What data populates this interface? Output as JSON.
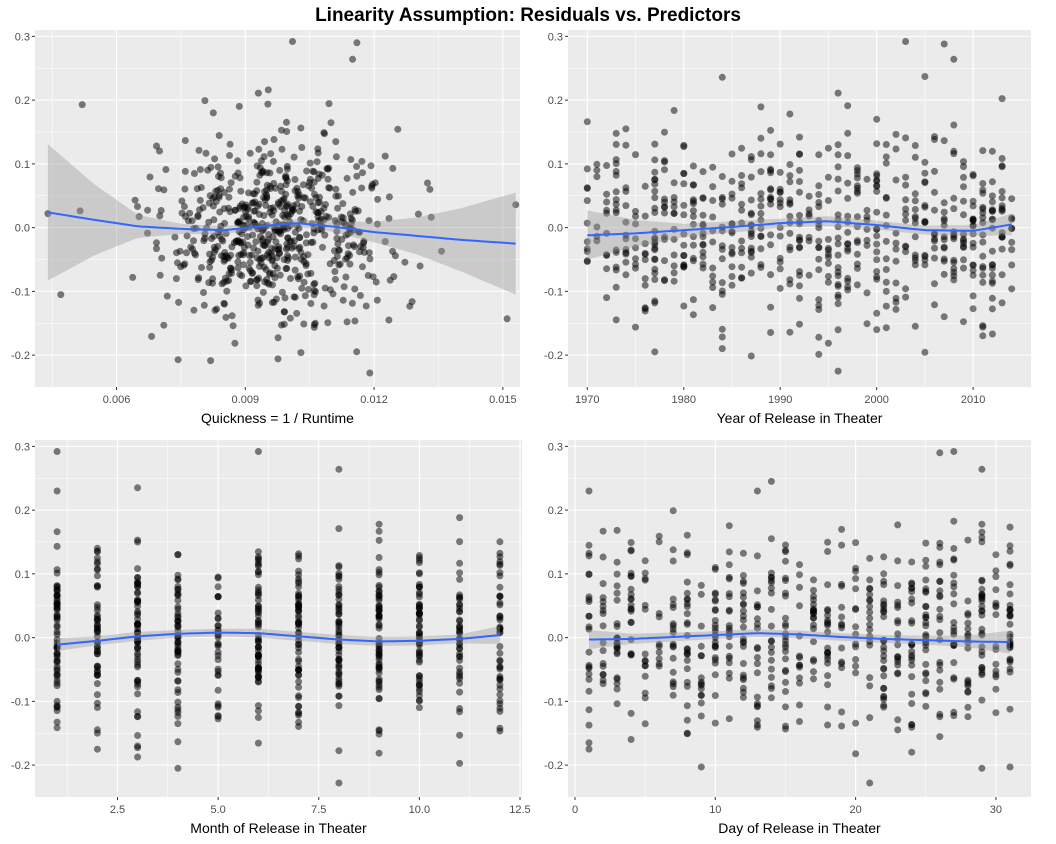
{
  "figure": {
    "title": "Linearity Assumption: Residuals vs. Predictors"
  },
  "chart_data": [
    {
      "type": "scatter",
      "id": "p1",
      "xlabel": "Quickness = 1 / Runtime",
      "ylabel": "",
      "xlim": [
        0.0041,
        0.0154
      ],
      "ylim": [
        -0.25,
        0.31
      ],
      "xticks": [
        0.006,
        0.009,
        0.012,
        0.015
      ],
      "xticklabels": [
        "0.006",
        "0.009",
        "0.012",
        "0.015"
      ],
      "yticks": [
        -0.2,
        -0.1,
        0.0,
        0.1,
        0.2,
        0.3
      ],
      "yticklabels": [
        "-0.2",
        "-0.1",
        "0.0",
        "0.1",
        "0.2",
        "0.3"
      ],
      "grid": true,
      "points": {
        "x_center": 0.0097,
        "x_sd": 0.0013,
        "y_sd": 0.072,
        "n": 650,
        "extra": [
          [
            0.0047,
            -0.105
          ],
          [
            0.0052,
            0.193
          ],
          [
            0.0044,
            0.022
          ],
          [
            0.0151,
            -0.143
          ],
          [
            0.0153,
            0.036
          ],
          [
            0.0101,
            0.292
          ],
          [
            0.0116,
            0.29
          ],
          [
            0.0115,
            0.264
          ],
          [
            0.0119,
            -0.228
          ],
          [
            0.0133,
            0.06
          ],
          [
            0.0071,
            -0.153
          ]
        ]
      },
      "smooth": {
        "x": [
          0.0044,
          0.0055,
          0.0065,
          0.0075,
          0.0085,
          0.0095,
          0.0102,
          0.011,
          0.012,
          0.013,
          0.014,
          0.0153
        ],
        "y": [
          0.024,
          0.012,
          0.002,
          -0.002,
          -0.004,
          0.003,
          0.007,
          0.002,
          -0.007,
          -0.013,
          -0.019,
          -0.025
        ],
        "lower": [
          -0.083,
          -0.043,
          -0.016,
          -0.01,
          -0.01,
          -0.003,
          0.001,
          -0.006,
          -0.023,
          -0.042,
          -0.068,
          -0.105
        ],
        "upper": [
          0.131,
          0.067,
          0.02,
          0.006,
          0.002,
          0.009,
          0.013,
          0.01,
          0.009,
          0.016,
          0.03,
          0.055
        ]
      }
    },
    {
      "type": "scatter",
      "id": "p2",
      "xlabel": "Year of Release in Theater",
      "ylabel": "",
      "xlim": [
        1968,
        2016
      ],
      "ylim": [
        -0.25,
        0.31
      ],
      "xticks": [
        1970,
        1980,
        1990,
        2000,
        2010
      ],
      "xticklabels": [
        "1970",
        "1980",
        "1990",
        "2000",
        "2010"
      ],
      "yticks": [
        -0.2,
        -0.1,
        0.0,
        0.1,
        0.2,
        0.3
      ],
      "yticklabels": [
        "-0.2",
        "-0.1",
        "0.0",
        "0.1",
        "0.2",
        "0.3"
      ],
      "grid": true,
      "points": {
        "x_discrete": [
          1970,
          2014
        ],
        "y_sd": 0.075,
        "n": 650,
        "extra": [
          [
            2003,
            0.292
          ],
          [
            2007,
            0.288
          ],
          [
            2008,
            0.264
          ],
          [
            1996,
            -0.225
          ],
          [
            1977,
            -0.195
          ],
          [
            2005,
            0.237
          ]
        ]
      },
      "smooth": {
        "x": [
          1970,
          1975,
          1980,
          1985,
          1990,
          1995,
          2000,
          2005,
          2010,
          2014
        ],
        "y": [
          -0.012,
          -0.009,
          -0.004,
          0.001,
          0.007,
          0.01,
          0.004,
          -0.004,
          -0.005,
          0.005
        ],
        "lower": [
          -0.05,
          -0.03,
          -0.015,
          -0.008,
          0.0,
          0.002,
          -0.003,
          -0.011,
          -0.013,
          -0.012
        ],
        "upper": [
          0.027,
          0.012,
          0.006,
          0.01,
          0.014,
          0.018,
          0.011,
          0.003,
          0.004,
          0.022
        ]
      }
    },
    {
      "type": "scatter",
      "id": "p3",
      "xlabel": "Month of Release in Theater",
      "ylabel": "",
      "xlim": [
        0.45,
        12.55
      ],
      "ylim": [
        -0.25,
        0.31
      ],
      "xticks": [
        2.5,
        5.0,
        7.5,
        10.0,
        12.5
      ],
      "xticklabels": [
        "2.5",
        "5.0",
        "7.5",
        "10.0",
        "12.5"
      ],
      "yticks": [
        -0.2,
        -0.1,
        0.0,
        0.1,
        0.2,
        0.3
      ],
      "yticklabels": [
        "-0.2",
        "-0.1",
        "0.0",
        "0.1",
        "0.2",
        "0.3"
      ],
      "grid": true,
      "points": {
        "x_discrete": [
          1,
          12
        ],
        "y_sd": 0.075,
        "n": 650,
        "extra": [
          [
            1,
            0.292
          ],
          [
            6,
            0.292
          ],
          [
            8,
            0.264
          ],
          [
            8,
            -0.228
          ],
          [
            4,
            -0.205
          ],
          [
            3,
            0.235
          ],
          [
            1,
            0.23
          ]
        ]
      },
      "smooth": {
        "x": [
          1,
          2,
          3,
          4,
          5,
          6,
          7,
          8,
          9,
          10,
          11,
          12
        ],
        "y": [
          -0.011,
          -0.005,
          0.002,
          0.006,
          0.008,
          0.007,
          0.002,
          -0.003,
          -0.006,
          -0.005,
          -0.002,
          0.004
        ],
        "lower": [
          -0.021,
          -0.012,
          -0.005,
          0.0,
          0.002,
          0.0,
          -0.005,
          -0.01,
          -0.013,
          -0.012,
          -0.009,
          -0.01
        ],
        "upper": [
          -0.001,
          0.002,
          0.009,
          0.012,
          0.014,
          0.014,
          0.009,
          0.004,
          0.001,
          0.002,
          0.005,
          0.018
        ]
      }
    },
    {
      "type": "scatter",
      "id": "p4",
      "xlabel": "Day of Release in Theater",
      "ylabel": "",
      "xlim": [
        -0.5,
        32.5
      ],
      "ylim": [
        -0.25,
        0.31
      ],
      "xticks": [
        0,
        10,
        20,
        30
      ],
      "xticklabels": [
        "0",
        "10",
        "20",
        "30"
      ],
      "yticks": [
        -0.2,
        -0.1,
        0.0,
        0.1,
        0.2,
        0.3
      ],
      "yticklabels": [
        "-0.2",
        "-0.1",
        "0.0",
        "0.1",
        "0.2",
        "0.3"
      ],
      "grid": true,
      "points": {
        "x_discrete": [
          1,
          31
        ],
        "y_sd": 0.075,
        "n": 650,
        "extra": [
          [
            26,
            0.29
          ],
          [
            27,
            0.292
          ],
          [
            29,
            0.264
          ],
          [
            21,
            -0.228
          ],
          [
            29,
            -0.205
          ],
          [
            1,
            0.23
          ],
          [
            13,
            0.23
          ]
        ]
      },
      "smooth": {
        "x": [
          1,
          4,
          7,
          10,
          13,
          16,
          19,
          22,
          25,
          28,
          31
        ],
        "y": [
          -0.003,
          -0.002,
          0.001,
          0.004,
          0.007,
          0.005,
          0.001,
          -0.002,
          -0.004,
          -0.006,
          -0.007
        ],
        "lower": [
          -0.018,
          -0.01,
          -0.006,
          -0.002,
          0.001,
          -0.001,
          -0.005,
          -0.008,
          -0.011,
          -0.015,
          -0.025
        ],
        "upper": [
          0.012,
          0.006,
          0.008,
          0.01,
          0.013,
          0.011,
          0.007,
          0.004,
          0.003,
          0.003,
          0.011
        ]
      }
    }
  ]
}
